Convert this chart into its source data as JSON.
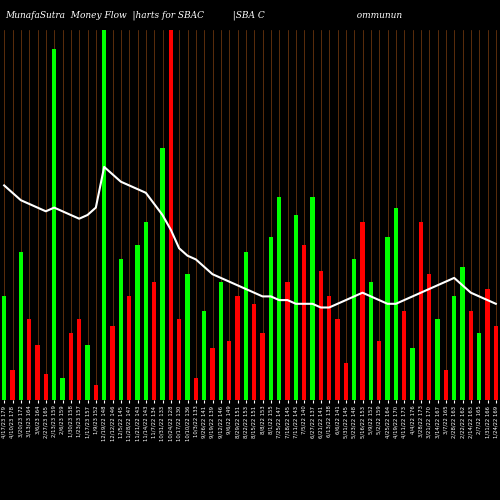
{
  "title": "MunafaSutra  Money Flow  |harts for SBAC          |SBA C                                ommunun",
  "background_color": "#000000",
  "bar_colors_pattern": [
    "green",
    "red",
    "green",
    "red",
    "red",
    "red",
    "green",
    "green",
    "red",
    "red",
    "green",
    "red",
    "green",
    "red",
    "green",
    "red",
    "green",
    "green",
    "red",
    "green",
    "red",
    "red",
    "green",
    "red",
    "green",
    "red",
    "green",
    "red",
    "red",
    "green",
    "red",
    "red",
    "green",
    "green",
    "red",
    "green",
    "red",
    "green",
    "red",
    "red",
    "red",
    "red",
    "green",
    "red",
    "green",
    "red",
    "green",
    "green",
    "red",
    "green",
    "red",
    "red",
    "green",
    "red",
    "green",
    "green",
    "red",
    "green",
    "red",
    "red"
  ],
  "bar_heights": [
    28,
    8,
    40,
    22,
    15,
    7,
    95,
    6,
    18,
    22,
    15,
    4,
    100,
    20,
    38,
    28,
    42,
    48,
    32,
    68,
    100,
    22,
    34,
    6,
    24,
    14,
    32,
    16,
    28,
    40,
    26,
    18,
    44,
    55,
    32,
    50,
    42,
    55,
    35,
    28,
    22,
    10,
    38,
    48,
    32,
    16,
    44,
    52,
    24,
    14,
    48,
    34,
    22,
    8,
    28,
    36,
    24,
    18,
    30,
    20
  ],
  "line_values": [
    58,
    56,
    54,
    53,
    52,
    51,
    52,
    51,
    50,
    49,
    50,
    52,
    63,
    61,
    59,
    58,
    57,
    56,
    53,
    50,
    46,
    41,
    39,
    38,
    36,
    34,
    33,
    32,
    31,
    30,
    29,
    28,
    28,
    27,
    27,
    26,
    26,
    26,
    25,
    25,
    26,
    27,
    28,
    29,
    28,
    27,
    26,
    26,
    27,
    28,
    29,
    30,
    31,
    32,
    33,
    31,
    29,
    28,
    27,
    26
  ],
  "x_labels": [
    "4/17/23 179",
    "4/10/23 178",
    "3/20/23 172",
    "3/13/23 164",
    "3/6/23 164",
    "2/27/23 165",
    "2/13/23 159",
    "2/6/23 159",
    "1/30/23 158",
    "1/23/23 157",
    "1/17/23 157",
    "1/9/23 152",
    "12/19/22 148",
    "12/12/22 146",
    "12/5/22 145",
    "11/28/22 147",
    "11/21/22 143",
    "11/14/22 143",
    "11/7/22 134",
    "10/31/22 133",
    "10/24/22 128",
    "10/17/22 130",
    "10/10/22 136",
    "10/3/22 133",
    "9/26/22 141",
    "9/19/22 139",
    "9/12/22 146",
    "9/6/22 149",
    "8/29/22 151",
    "8/22/22 153",
    "8/15/22 151",
    "8/8/22 153",
    "8/1/22 155",
    "7/25/22 147",
    "7/18/22 145",
    "7/11/22 143",
    "7/5/22 140",
    "6/27/22 137",
    "6/21/22 141",
    "6/13/22 138",
    "6/6/22 141",
    "5/31/22 145",
    "5/23/22 148",
    "5/16/22 153",
    "5/9/22 152",
    "5/2/22 159",
    "4/25/22 164",
    "4/19/22 170",
    "4/11/22 173",
    "4/4/22 176",
    "3/28/22 173",
    "3/21/22 170",
    "3/14/22 167",
    "3/7/22 165",
    "2/28/22 163",
    "2/22/22 162",
    "2/14/22 163",
    "2/7/22 165",
    "1/31/22 166",
    "1/24/22 169"
  ],
  "ylim": [
    0,
    100
  ],
  "title_fontsize": 6.5,
  "tick_fontsize": 3.8,
  "orange_line_color": "#8B4513",
  "white_line_color": "#ffffff",
  "green_bar_color": "#00ff00",
  "red_bar_color": "#ff0000",
  "highlight_green_bar": 12,
  "highlight_red_bar": 20
}
